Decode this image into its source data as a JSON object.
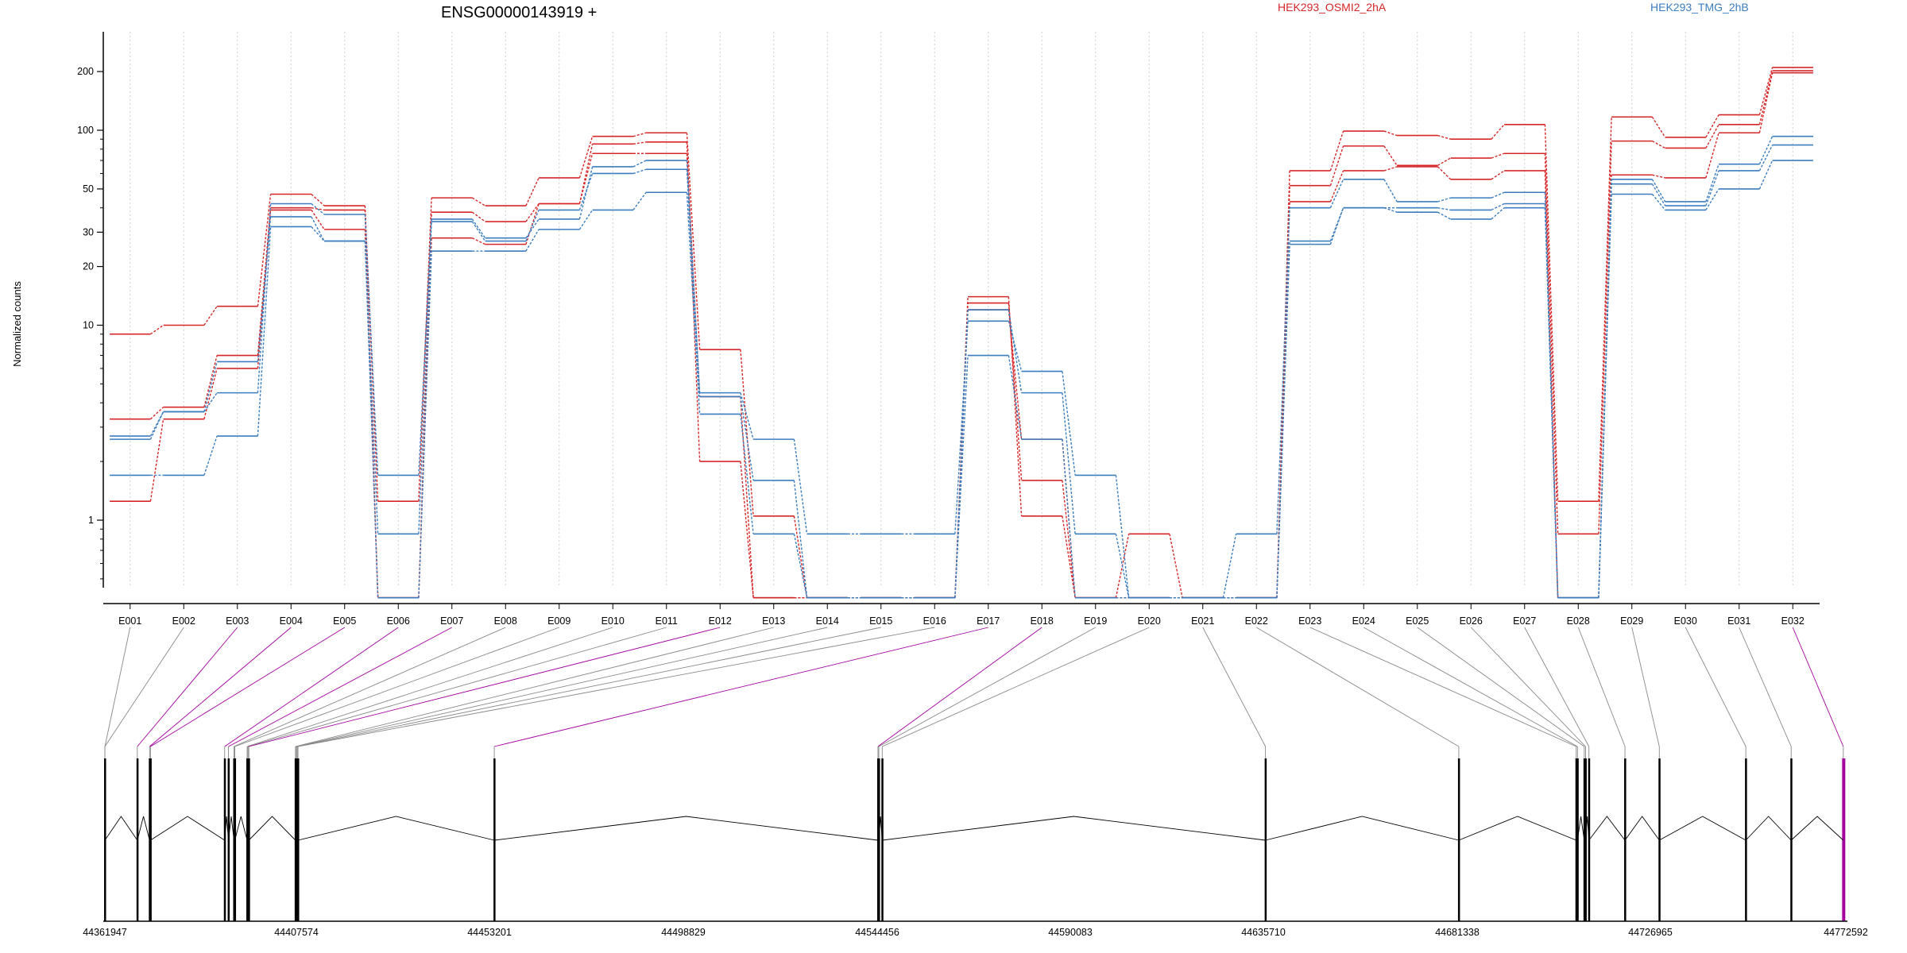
{
  "chart_data": {
    "type": "line",
    "title": "ENSG00000143919 +",
    "ylabel": "Normalized counts",
    "yscale": "log",
    "ylim": [
      0.4,
      260
    ],
    "ytick_labels": [
      "1",
      "10",
      "20",
      "30",
      "50",
      "100",
      "200"
    ],
    "categories": [
      "E001",
      "E002",
      "E003",
      "E004",
      "E005",
      "E006",
      "E007",
      "E008",
      "E009",
      "E010",
      "E011",
      "E012",
      "E013",
      "E014",
      "E015",
      "E016",
      "E017",
      "E018",
      "E019",
      "E020",
      "E021",
      "E022",
      "E023",
      "E024",
      "E025",
      "E026",
      "E027",
      "E028",
      "E029",
      "E030",
      "E031",
      "E032"
    ],
    "legend": [
      {
        "name": "HEK293_OSMI2_2hA",
        "color": "#d62728"
      },
      {
        "name": "HEK293_TMG_2hB",
        "color": "#3b7dbf"
      }
    ],
    "series": [
      {
        "group": "HEK293_OSMI2_2hA",
        "color": "#d62728",
        "values": [
          9,
          10,
          12.5,
          47,
          41,
          1.25,
          45,
          41,
          57,
          93,
          97,
          7.5,
          1.05,
          0.4,
          0.4,
          0.4,
          14,
          1.05,
          0.4,
          0.85,
          0.4,
          0.4,
          62,
          99,
          94,
          90,
          107,
          1.25,
          117,
          92,
          120,
          210
        ]
      },
      {
        "group": "HEK293_OSMI2_2hA",
        "color": "#d62728",
        "values": [
          3.3,
          3.8,
          7,
          40,
          39,
          0.4,
          38,
          34,
          42,
          85,
          87,
          2,
          0.4,
          0.4,
          0.4,
          0.4,
          13,
          1.6,
          0.4,
          0.4,
          0.4,
          0.4,
          52,
          83,
          66,
          72,
          76,
          0.85,
          88,
          81,
          107,
          202
        ]
      },
      {
        "group": "HEK293_OSMI2_2hA",
        "color": "#d62728",
        "values": [
          1.25,
          3.3,
          6,
          39,
          31,
          0.4,
          28,
          26,
          42,
          76,
          76,
          4.3,
          0.4,
          0.4,
          0.4,
          0.4,
          12,
          2.6,
          0.4,
          0.4,
          0.4,
          0.4,
          43,
          62,
          65,
          56,
          62,
          0.4,
          59,
          57,
          97,
          197
        ]
      },
      {
        "group": "HEK293_TMG_2hB",
        "color": "#3b7dbf",
        "values": [
          2.7,
          3.6,
          4.5,
          42,
          37,
          1.7,
          35,
          28,
          35,
          65,
          70,
          4.5,
          2.6,
          0.85,
          0.85,
          0.85,
          10.5,
          5.8,
          1.7,
          0.4,
          0.4,
          0.85,
          40,
          56,
          43,
          45,
          48,
          0.4,
          56,
          43,
          67,
          93
        ]
      },
      {
        "group": "HEK293_TMG_2hB",
        "color": "#3b7dbf",
        "values": [
          2.6,
          3.6,
          6.5,
          36,
          27,
          0.85,
          34,
          27,
          39,
          60,
          63,
          4.3,
          1.6,
          0.4,
          0.4,
          0.4,
          12,
          4.5,
          0.85,
          0.4,
          0.4,
          0.4,
          27,
          40,
          40,
          39,
          42,
          0.4,
          53,
          41,
          62,
          84
        ]
      },
      {
        "group": "HEK293_TMG_2hB",
        "color": "#3b7dbf",
        "values": [
          1.7,
          1.7,
          2.7,
          32,
          27,
          0.4,
          24,
          24,
          31,
          39,
          48,
          3.5,
          0.85,
          0.4,
          0.4,
          0.4,
          7,
          2.6,
          0.4,
          0.4,
          0.4,
          0.4,
          26,
          40,
          38,
          35,
          40,
          0.4,
          47,
          39,
          50,
          70
        ]
      }
    ],
    "genomic_axis": {
      "tick_labels": [
        "44361947",
        "44407574",
        "44453201",
        "44498829",
        "44544456",
        "44590083",
        "44635710",
        "44681338",
        "44726965",
        "44772592"
      ],
      "start": 44361947,
      "end": 44772592,
      "highlight_color": "#a3009e",
      "exons": [
        {
          "id": "E001",
          "start": 44361947
        },
        {
          "id": "E002",
          "start": 44361947
        },
        {
          "id": "E003",
          "start": 44369600
        },
        {
          "id": "E004",
          "start": 44372500
        },
        {
          "id": "E005",
          "start": 44372700
        },
        {
          "id": "E006",
          "start": 44390200
        },
        {
          "id": "E007",
          "start": 44391100
        },
        {
          "id": "E008",
          "start": 44392400
        },
        {
          "id": "E009",
          "start": 44392600
        },
        {
          "id": "E010",
          "start": 44395500
        },
        {
          "id": "E011",
          "start": 44395700
        },
        {
          "id": "E012",
          "start": 44395900
        },
        {
          "id": "E013",
          "start": 44406900
        },
        {
          "id": "E014",
          "start": 44407100
        },
        {
          "id": "E015",
          "start": 44407300
        },
        {
          "id": "E016",
          "start": 44407500
        },
        {
          "id": "E017",
          "start": 44453800
        },
        {
          "id": "E018",
          "start": 44544300
        },
        {
          "id": "E019",
          "start": 44544500
        },
        {
          "id": "E020",
          "start": 44545300
        },
        {
          "id": "E021",
          "start": 44635700
        },
        {
          "id": "E022",
          "start": 44681300
        },
        {
          "id": "E023",
          "start": 44709000
        },
        {
          "id": "E024",
          "start": 44709300
        },
        {
          "id": "E025",
          "start": 44710900
        },
        {
          "id": "E026",
          "start": 44711200
        },
        {
          "id": "E027",
          "start": 44712000
        },
        {
          "id": "E028",
          "start": 44720500
        },
        {
          "id": "E029",
          "start": 44728600
        },
        {
          "id": "E030",
          "start": 44749000
        },
        {
          "id": "E031",
          "start": 44759700
        },
        {
          "id": "E032",
          "start": 44772000
        }
      ],
      "highlighted_exons": [
        "E003",
        "E004",
        "E005",
        "E006",
        "E007",
        "E012",
        "E017",
        "E018",
        "E032"
      ]
    }
  }
}
